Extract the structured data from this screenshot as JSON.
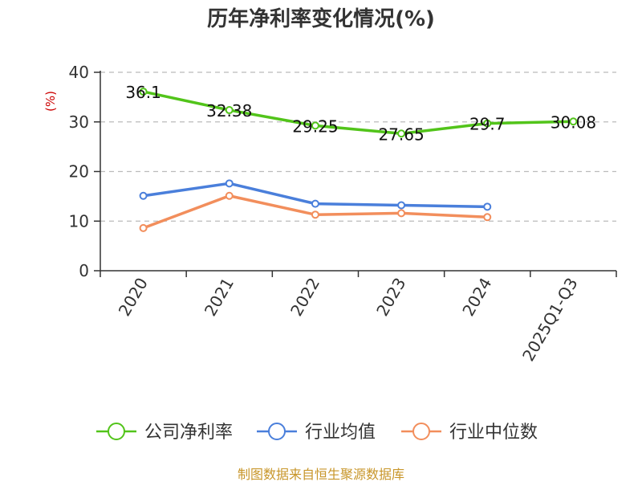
{
  "chart_data": {
    "type": "line",
    "title": "历年净利率变化情况(%)",
    "ylabel": "(%)",
    "categories": [
      "2020",
      "2021",
      "2022",
      "2023",
      "2024",
      "2025Q1-Q3"
    ],
    "ylim": [
      0,
      40
    ],
    "yticks": [
      0,
      10,
      20,
      30,
      40
    ],
    "grid": true,
    "legend_position": "bottom",
    "series": [
      {
        "name": "公司净利率",
        "color": "#52c41a",
        "values": [
          36.1,
          32.38,
          29.25,
          27.65,
          29.7,
          30.08
        ],
        "labels": [
          "36.1",
          "32.38",
          "29.25",
          "27.65",
          "29.7",
          "30.08"
        ]
      },
      {
        "name": "行业均值",
        "color": "#4a7fdb",
        "values": [
          15.1,
          17.6,
          13.5,
          13.2,
          12.9,
          null
        ]
      },
      {
        "name": "行业中位数",
        "color": "#f28e5c",
        "values": [
          8.6,
          15.1,
          11.3,
          11.6,
          10.8,
          null
        ]
      }
    ]
  },
  "colors": {
    "axis": "#333333",
    "grid": "#bbbbbb",
    "ylabel": "#cc0000",
    "source": "#c8962a"
  },
  "source_text": "制图数据来自恒生聚源数据库"
}
